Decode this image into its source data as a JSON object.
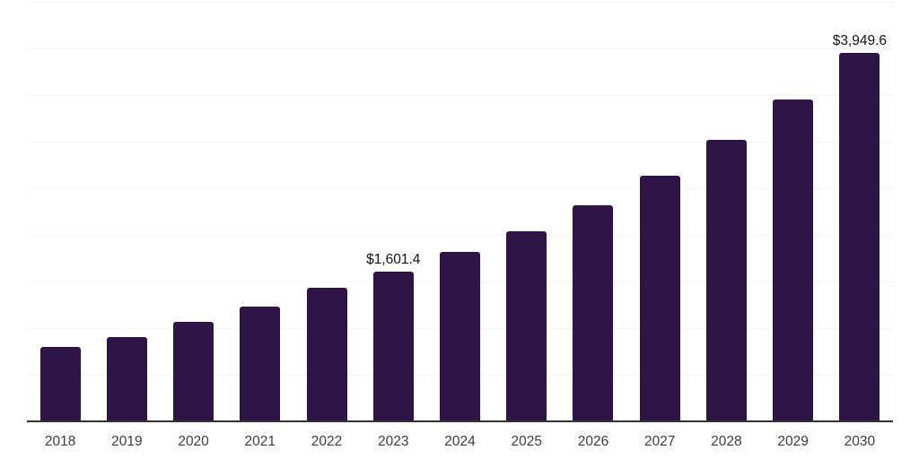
{
  "chart_data": {
    "type": "bar",
    "title": "",
    "xlabel": "",
    "ylabel": "",
    "categories": [
      "2018",
      "2019",
      "2020",
      "2021",
      "2022",
      "2023",
      "2024",
      "2025",
      "2026",
      "2027",
      "2028",
      "2029",
      "2030"
    ],
    "values": [
      800,
      905,
      1070,
      1235,
      1435,
      1601.4,
      1815,
      2040,
      2320,
      2635,
      3015,
      3450,
      3949.6
    ],
    "data_labels": {
      "2023": "$1,601.4",
      "2030": "$3,949.6"
    },
    "ylim": [
      0,
      4500
    ],
    "grid_step": 500,
    "grid": "horizontal-only",
    "y_tick_labels_visible": false,
    "legend_position": "none",
    "colors": {
      "bar": "#2F1546",
      "gridline": "#f2f2f2",
      "axis_line": "#333333",
      "tick_label": "#3d3d3d",
      "data_label": "#141414",
      "background": "#ffffff"
    }
  }
}
